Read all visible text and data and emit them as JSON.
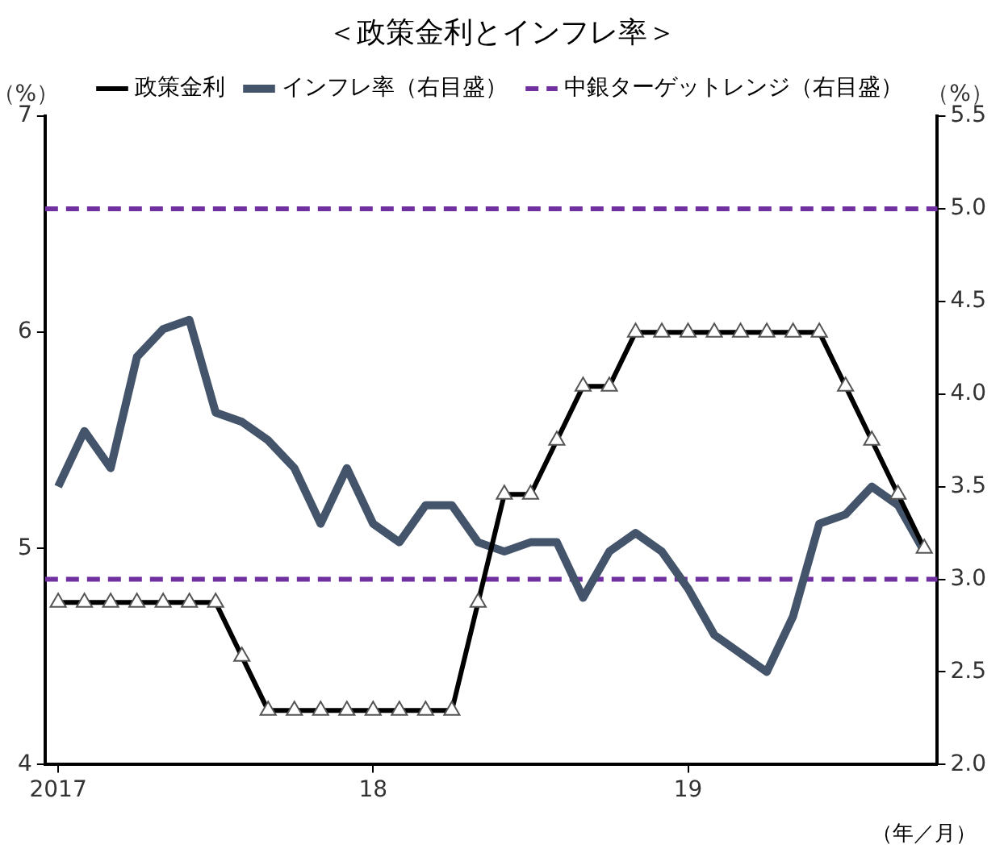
{
  "chart_data": {
    "type": "line",
    "title": "＜政策金利とインフレ率＞",
    "xlabel": "（年／月）",
    "ylabel": "（%）",
    "y2label": "（%）",
    "categories": [
      "2017",
      null,
      null,
      null,
      null,
      null,
      null,
      null,
      null,
      null,
      null,
      null,
      "18",
      null,
      null,
      null,
      null,
      null,
      null,
      null,
      null,
      null,
      null,
      null,
      "19",
      null,
      null,
      null,
      null,
      null,
      null,
      null,
      null,
      null
    ],
    "series": [
      {
        "name": "政策金利",
        "color": "#000000",
        "marker": "triangle",
        "values": [
          4.75,
          4.75,
          4.75,
          4.75,
          4.75,
          4.75,
          4.75,
          4.5,
          4.25,
          4.25,
          4.25,
          4.25,
          4.25,
          4.25,
          4.25,
          4.25,
          4.75,
          5.25,
          5.25,
          5.5,
          5.75,
          5.75,
          6,
          6,
          6,
          6,
          6,
          6,
          6,
          6,
          5.75,
          5.5,
          5.25,
          5
        ]
      },
      {
        "name": "インフレ率（右目盛）",
        "color": "#44546a",
        "marker": "none",
        "axis": "y2",
        "values": [
          3.5,
          3.8,
          3.6,
          4.2,
          4.35,
          4.4,
          3.9,
          3.85,
          3.75,
          3.6,
          3.3,
          3.6,
          3.3,
          3.2,
          3.4,
          3.4,
          3.2,
          3.15,
          3.2,
          3.2,
          2.9,
          3.15,
          3.25,
          3.15,
          2.95,
          2.7,
          2.6,
          2.5,
          2.8,
          3.3,
          3.35,
          3.5,
          3.4,
          3.15
        ]
      }
    ],
    "ref_lines": [
      {
        "axis": "y2",
        "value": 5,
        "label": "中銀ターゲットレンジ（右目盛）",
        "color": "#7030a0",
        "line_style": "dashed"
      },
      {
        "axis": "y2",
        "value": 3,
        "color": "#7030a0",
        "line_style": "dashed"
      }
    ],
    "ylim": [
      4,
      7
    ],
    "yticks": [
      4,
      5,
      6,
      7
    ],
    "y2lim": [
      2,
      5.5
    ],
    "y2ticks": [
      {
        "value": 2,
        "label": "2.0"
      },
      {
        "value": 2.5,
        "label": "2.5"
      },
      {
        "value": 3,
        "label": "3.0"
      },
      {
        "value": 3.5,
        "label": "3.5"
      },
      {
        "value": 4,
        "label": "4.0"
      },
      {
        "value": 4.5,
        "label": "4.5"
      },
      {
        "value": 5,
        "label": "5.0"
      },
      {
        "value": 5.5,
        "label": "5.5"
      }
    ],
    "grid": false,
    "legend": "top"
  }
}
